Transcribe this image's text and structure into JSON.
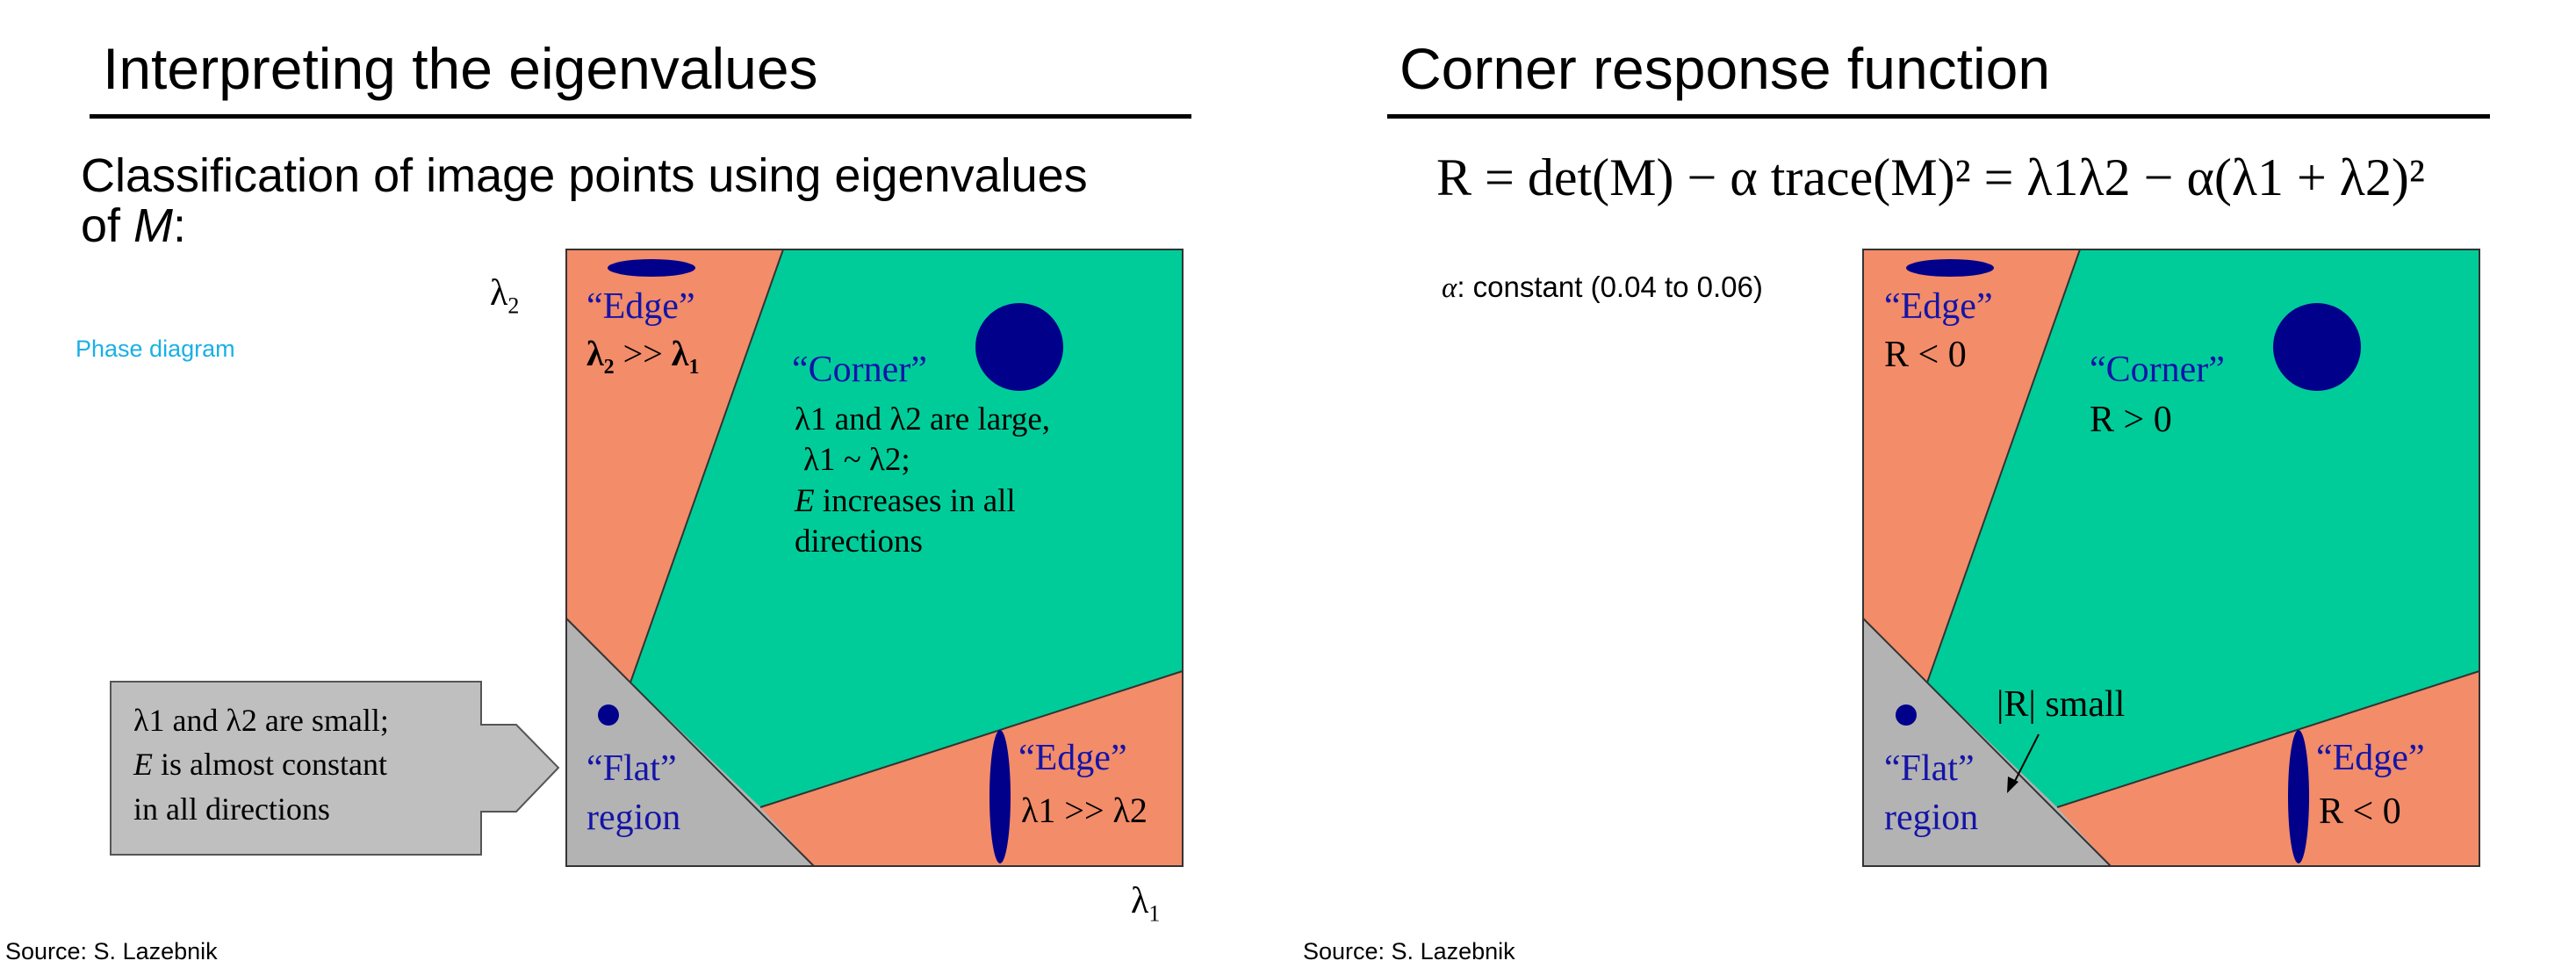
{
  "left_slide": {
    "title": "Interpreting the eigenvalues",
    "subtitle_line1": "Classification of image points using eigenvalues",
    "subtitle_line2_prefix": "of ",
    "subtitle_line2_var": "M",
    "subtitle_line2_suffix": ":",
    "link_caption": "Phase diagram",
    "source": "Source: S. Lazebnik",
    "axis_y_label": "λ",
    "axis_y_sub": "2",
    "axis_x_label": "λ",
    "axis_x_sub": "1",
    "edge_top_label": "“Edge”",
    "edge_top_desc_a": "λ",
    "edge_top_desc_a_sub": "2",
    "edge_top_desc_op": " >> ",
    "edge_top_desc_b": "λ",
    "edge_top_desc_b_sub": "1",
    "corner_label": "“Corner”",
    "corner_line1": "λ1 and λ2 are large,",
    "corner_line2": "λ1 ~ λ2;",
    "corner_line3_var": "E",
    "corner_line3_rest": " increases in all",
    "corner_line4": "directions",
    "flat_label_line1": "“Flat”",
    "flat_label_line2": "region",
    "edge_right_label": "“Edge”",
    "edge_right_desc": "λ1 >> λ2",
    "callout_line1": "λ1 and λ2 are small;",
    "callout_line2_var": "E",
    "callout_line2_rest": " is almost constant",
    "callout_line3": "in all directions"
  },
  "right_slide": {
    "title": "Corner response function",
    "formula": "R = det(M) − α trace(M)² = λ1λ2 − α(λ1 + λ2)²",
    "alpha_var": "α",
    "alpha_note": ": constant (0.04 to 0.06)",
    "source": "Source: S. Lazebnik",
    "edge_top_label": "“Edge”",
    "edge_top_desc": "R < 0",
    "corner_label": "“Corner”",
    "corner_desc": "R > 0",
    "flat_label_line1": "“Flat”",
    "flat_label_line2": "region",
    "small_label": "|R| small",
    "edge_right_label": "“Edge”",
    "edge_right_desc": "R < 0"
  },
  "colors": {
    "edge_region": "#f28c69",
    "corner_region": "#00cc99",
    "flat_region": "#b3b3b3",
    "blob": "#00008b",
    "label_blue": "#1414a8",
    "link": "#19b0e6"
  }
}
